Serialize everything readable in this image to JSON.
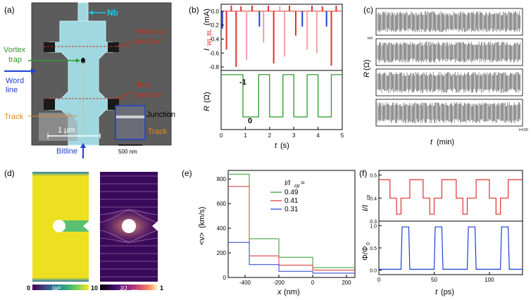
{
  "panels": {
    "a": {
      "label": "(a)",
      "nb": "Nb",
      "readout": [
        "Readout",
        "junction"
      ],
      "vortex": [
        "Vortex",
        "trap"
      ],
      "word": [
        "Word",
        "line"
      ],
      "test": [
        "Test",
        "junction"
      ],
      "track": "Track",
      "scale": "1 μm",
      "bitline": "Bitline",
      "inset_junction": "Junction",
      "inset_track": "Track",
      "inset_scale": "500 nm"
    },
    "b": {
      "label": "(b)",
      "minus1": "-1",
      "zero": "0"
    },
    "c": {
      "label": "(c)",
      "t0": "t=0",
      "t100": "t=100"
    },
    "d": {
      "label": "(d)",
      "cb1_left": "0",
      "cb1_mid": "|ψ|²",
      "cb1_right": "1",
      "cb2_left": "0",
      "cb2_mid": "J/J",
      "cb2_sub": "max",
      "cb2_right": "1"
    },
    "e": {
      "label": "(e)"
    },
    "f": {
      "label": "(f)"
    }
  },
  "colors": {
    "red": "#e03030",
    "blue": "#1f3fd0",
    "green": "#2a9a2a",
    "nb": "#4ad8f0",
    "word": "#1f3fd0"
  },
  "chart_data": [
    {
      "id": "b-top",
      "type": "line",
      "xlim": [
        0,
        5
      ],
      "ylim": [
        -0.85,
        0.1
      ],
      "xticks": [
        "0",
        "1",
        "2",
        "3",
        "4",
        "5"
      ],
      "yticks": [
        "0.0",
        "-0.2",
        "-0.4",
        "-0.6",
        "-0.8"
      ],
      "ylabel": "I",
      "ylabel_sub": "WL,BL",
      "ylabel_unit": "(mA)",
      "pulses": [
        {
          "t": 0.05,
          "v": -0.25,
          "c": "blue"
        },
        {
          "t": 0.22,
          "v": -0.55,
          "c": "red"
        },
        {
          "t": 0.42,
          "v": 0.08,
          "c": "red"
        },
        {
          "t": 0.62,
          "v": -0.8,
          "c": "red"
        },
        {
          "t": 0.82,
          "v": 0.07,
          "c": "red"
        },
        {
          "t": 1.05,
          "v": -0.7,
          "c": "pink"
        },
        {
          "t": 1.28,
          "v": 0.08,
          "c": "red"
        },
        {
          "t": 1.58,
          "v": -0.22,
          "c": "blue"
        },
        {
          "t": 1.75,
          "v": -0.45,
          "c": "pink"
        },
        {
          "t": 1.95,
          "v": 0.08,
          "c": "red"
        },
        {
          "t": 2.17,
          "v": -0.75,
          "c": "red"
        },
        {
          "t": 2.42,
          "v": 0.07,
          "c": "pink"
        },
        {
          "t": 2.62,
          "v": -0.65,
          "c": "pink"
        },
        {
          "t": 2.82,
          "v": 0.08,
          "c": "red"
        },
        {
          "t": 3.08,
          "v": -0.35,
          "c": "red"
        },
        {
          "t": 3.35,
          "v": -0.22,
          "c": "blue"
        },
        {
          "t": 3.55,
          "v": -0.55,
          "c": "pink"
        },
        {
          "t": 3.75,
          "v": 0.08,
          "c": "red"
        },
        {
          "t": 3.95,
          "v": -0.6,
          "c": "pink"
        },
        {
          "t": 4.18,
          "v": 0.07,
          "c": "red"
        },
        {
          "t": 4.35,
          "v": -0.22,
          "c": "blue"
        },
        {
          "t": 4.55,
          "v": -0.78,
          "c": "red"
        },
        {
          "t": 4.75,
          "v": 0.08,
          "c": "red"
        }
      ]
    },
    {
      "id": "b-bottom",
      "type": "line",
      "xlim": [
        0,
        5
      ],
      "ylim": [
        -0.3,
        1.1
      ],
      "xticks": [
        "0",
        "1",
        "2",
        "3",
        "4",
        "5"
      ],
      "xlabel": "t",
      "xlabel_unit": "(s)",
      "ylabel": "R",
      "ylabel_unit": "(Ω)",
      "steps_x": [
        0,
        0.9,
        0.9,
        1.55,
        1.55,
        2.0,
        2.0,
        2.55,
        2.55,
        3.0,
        3.0,
        3.55,
        3.55,
        4.0,
        4.0,
        4.55,
        4.55,
        5.0
      ],
      "steps_y": [
        1,
        1,
        0,
        0,
        1,
        1,
        0,
        0,
        1,
        1,
        0,
        0,
        1,
        1,
        0,
        0,
        1,
        1
      ]
    },
    {
      "id": "c",
      "type": "line",
      "xlabel": "t",
      "xlabel_unit": "(min)",
      "ylabel": "R",
      "ylabel_unit": "(Ω)",
      "strips": 4
    },
    {
      "id": "e",
      "type": "line",
      "xlim": [
        -500,
        250
      ],
      "ylim": [
        0,
        870
      ],
      "xticks": [
        "-400",
        "-200",
        "0",
        "200"
      ],
      "yticks": [
        "0",
        "200",
        "400",
        "600",
        "800"
      ],
      "xlabel": "x",
      "xlabel_unit": "(nm)",
      "ylabel": "<v>",
      "ylabel_unit": "(km/s)",
      "legend_title": "I/I",
      "legend_sub": "cp",
      "legend_eq": " =",
      "legend_position": "top-right",
      "x_edges": [
        -500,
        -375,
        -200,
        0,
        250
      ],
      "series": [
        {
          "name": "0.49",
          "color": "#2a9a2a",
          "values": [
            840,
            315,
            165,
            80
          ]
        },
        {
          "name": "0.41",
          "color": "#e03030",
          "values": [
            740,
            175,
            100,
            60
          ]
        },
        {
          "name": "0.31",
          "color": "#1f3fd0",
          "values": [
            285,
            105,
            50,
            35
          ]
        }
      ]
    },
    {
      "id": "f-top",
      "type": "line",
      "xlim": [
        0,
        130
      ],
      "ylim": [
        0.3,
        0.52
      ],
      "yticks": [
        "0.5",
        "0.4",
        "0.3"
      ],
      "ylabel": "I/I",
      "ylabel_sub": "cp",
      "steps_x": [
        0,
        10,
        10,
        16,
        16,
        20,
        20,
        28,
        28,
        40,
        40,
        46,
        46,
        50,
        50,
        57,
        57,
        70,
        70,
        76,
        76,
        80,
        80,
        88,
        88,
        100,
        100,
        106,
        106,
        110,
        110,
        117,
        117,
        130
      ],
      "steps_y": [
        0.48,
        0.48,
        0.4,
        0.4,
        0.33,
        0.33,
        0.4,
        0.4,
        0.48,
        0.48,
        0.4,
        0.4,
        0.33,
        0.33,
        0.4,
        0.4,
        0.48,
        0.48,
        0.4,
        0.4,
        0.33,
        0.33,
        0.4,
        0.4,
        0.48,
        0.48,
        0.4,
        0.4,
        0.33,
        0.33,
        0.4,
        0.4,
        0.48,
        0.48
      ]
    },
    {
      "id": "f-bottom",
      "type": "line",
      "xlim": [
        0,
        130
      ],
      "ylim": [
        -0.1,
        1.1
      ],
      "xticks": [
        "0",
        "50",
        "100"
      ],
      "yticks": [
        "1.0",
        "0.5",
        "0.0"
      ],
      "xlabel": "t",
      "xlabel_unit": "(ps)",
      "ylabel": "Φ/Φ",
      "ylabel_sub": "0",
      "steps_x": [
        0,
        20,
        21,
        27,
        28,
        50,
        51,
        57,
        58,
        80,
        81,
        87,
        88,
        110,
        111,
        117,
        118,
        130
      ],
      "steps_y": [
        0.02,
        0.02,
        0.97,
        0.97,
        0.02,
        0.02,
        0.97,
        0.97,
        0.02,
        0.02,
        0.97,
        0.97,
        0.02,
        0.02,
        0.97,
        0.97,
        0.02,
        0.02
      ]
    }
  ]
}
